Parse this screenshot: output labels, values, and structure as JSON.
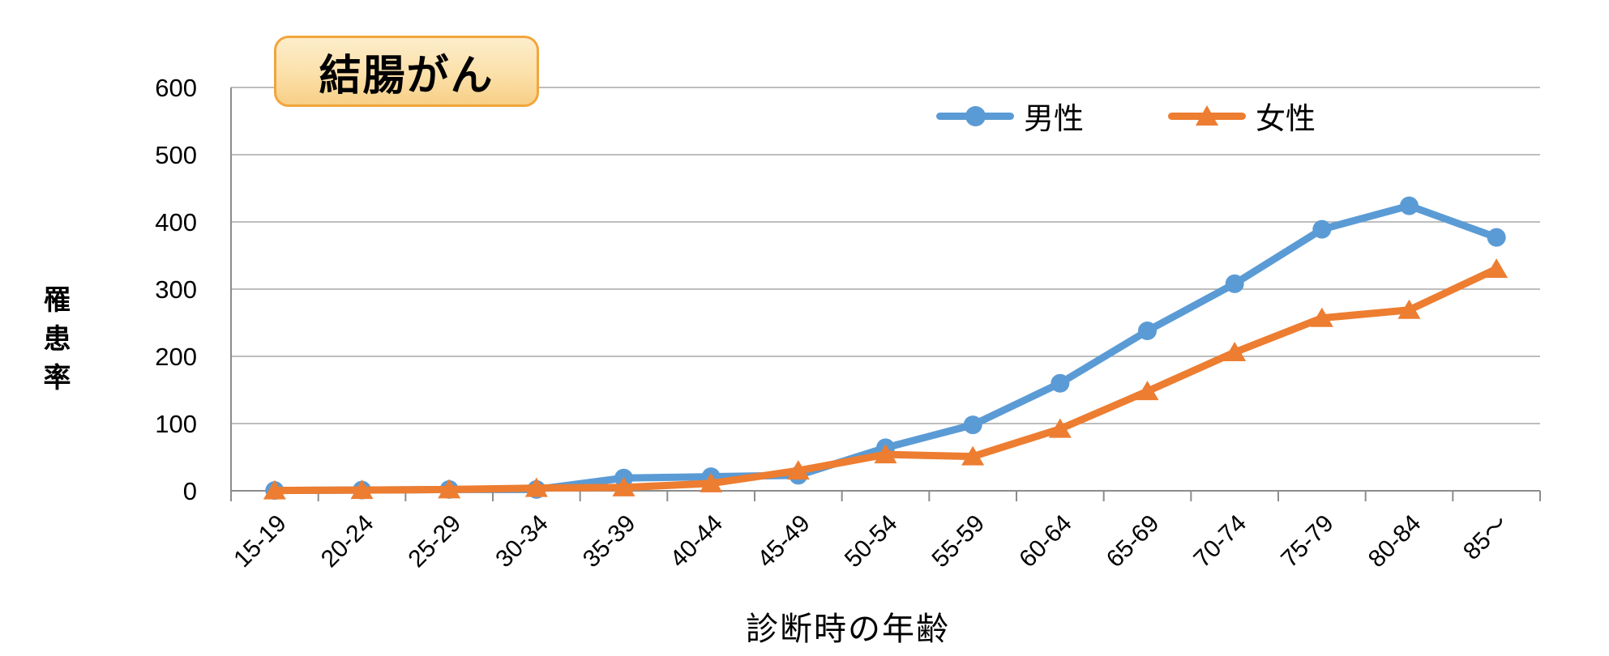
{
  "title": {
    "label": "結腸がん"
  },
  "legend": {
    "items": [
      {
        "label": "男性",
        "marker": "circle-icon",
        "color": "#5B9BD5"
      },
      {
        "label": "女性",
        "marker": "triangle-icon",
        "color": "#ED7D31"
      }
    ],
    "position": "top-right-inside"
  },
  "colors": {
    "male": "#5B9BD5",
    "female": "#ED7D31",
    "grid": "#A8A8A8",
    "axis": "#8C8C8C",
    "text": "#000000",
    "title_border": "#F2A53C",
    "title_bg_top": "#FDEDCB",
    "title_bg_bottom": "#F7CF87"
  },
  "chart_data": {
    "type": "line",
    "title": "結腸がん",
    "xlabel": "診断時の年齢",
    "ylabel": "罹患率",
    "ylim": [
      0,
      600
    ],
    "y_ticks": [
      0,
      100,
      200,
      300,
      400,
      500,
      600
    ],
    "grid": true,
    "legend_position": "top-right-inside",
    "categories": [
      "15-19",
      "20-24",
      "25-29",
      "30-34",
      "35-39",
      "40-44",
      "45-49",
      "50-54",
      "55-59",
      "60-64",
      "65-69",
      "70-74",
      "75-79",
      "80-84",
      "85～"
    ],
    "series": [
      {
        "name": "男性",
        "marker": "circle",
        "color": "#5B9BD5",
        "values": [
          0.5,
          1,
          2,
          2,
          19,
          21,
          23,
          64,
          98,
          160,
          238,
          308,
          389,
          424,
          377
        ]
      },
      {
        "name": "女性",
        "marker": "triangle",
        "color": "#ED7D31",
        "values": [
          0.5,
          1,
          2,
          4,
          5,
          11,
          30,
          54,
          51,
          92,
          148,
          206,
          257,
          269,
          330
        ]
      }
    ]
  }
}
